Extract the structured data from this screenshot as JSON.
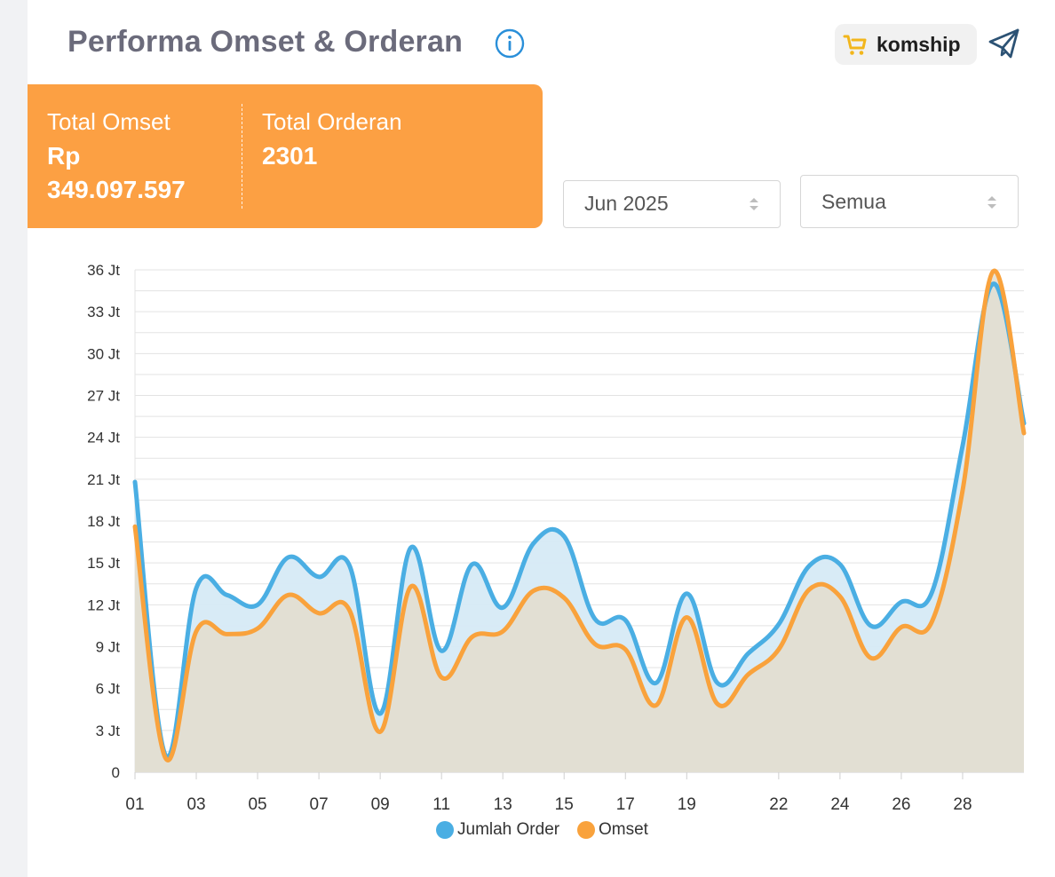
{
  "header": {
    "title": "Performa Omset & Orderan",
    "brand_name": "komship",
    "info_icon": "info-icon",
    "send_icon": "paper-plane-icon",
    "cart_icon": "cart-icon"
  },
  "summary": {
    "omset_label": "Total Omset",
    "omset_currency": "Rp",
    "omset_value": "349.097.597",
    "orders_label": "Total Orderan",
    "orders_value": "2301"
  },
  "filters": {
    "month": "Jun 2025",
    "scope": "Semua"
  },
  "colors": {
    "accent_orange": "#fca043",
    "order_line": "#4aaee3",
    "omset_line": "#f9a23c",
    "order_fill": "#d6eaf6",
    "omset_fill": "#e4ddcd",
    "title_text": "#6b6b7b",
    "icon_blue": "#2a8fd9"
  },
  "chart_data": {
    "type": "area",
    "x": [
      "01",
      "02",
      "03",
      "04",
      "05",
      "06",
      "07",
      "08",
      "09",
      "10",
      "11",
      "12",
      "13",
      "14",
      "15",
      "16",
      "17",
      "18",
      "19",
      "20",
      "21",
      "22",
      "23",
      "24",
      "25",
      "26",
      "27",
      "28",
      "29",
      "30"
    ],
    "x_tick_labels": [
      "01",
      "03",
      "05",
      "07",
      "09",
      "11",
      "13",
      "15",
      "17",
      "19",
      "22",
      "24",
      "26",
      "28"
    ],
    "y_tick_labels": [
      "0",
      "3 Jt",
      "6 Jt",
      "9 Jt",
      "12 Jt",
      "15 Jt",
      "18 Jt",
      "21 Jt",
      "24 Jt",
      "27 Jt",
      "30 Jt",
      "33 Jt",
      "36 Jt"
    ],
    "ylim": [
      0,
      36
    ],
    "y_unit": "Jt",
    "grid": true,
    "legend_position": "bottom",
    "series": [
      {
        "name": "Jumlah Order",
        "color": "#4aaee3",
        "values": [
          20.8,
          1.2,
          13.2,
          12.7,
          12.0,
          15.4,
          14.0,
          14.8,
          4.2,
          16.1,
          8.7,
          14.9,
          11.8,
          16.4,
          16.9,
          11.0,
          10.9,
          6.4,
          12.8,
          6.4,
          8.5,
          10.6,
          14.8,
          14.9,
          10.5,
          12.2,
          12.9,
          23.4,
          35.0,
          25.0
        ]
      },
      {
        "name": "Omset",
        "color": "#f9a23c",
        "values": [
          17.6,
          1.0,
          10.1,
          9.9,
          10.3,
          12.7,
          11.4,
          11.6,
          2.9,
          13.3,
          6.8,
          9.7,
          10.1,
          13.0,
          12.5,
          9.2,
          8.8,
          4.8,
          11.1,
          4.9,
          7.0,
          8.8,
          13.1,
          12.6,
          8.2,
          10.4,
          10.8,
          20.2,
          35.9,
          24.3
        ]
      }
    ]
  }
}
